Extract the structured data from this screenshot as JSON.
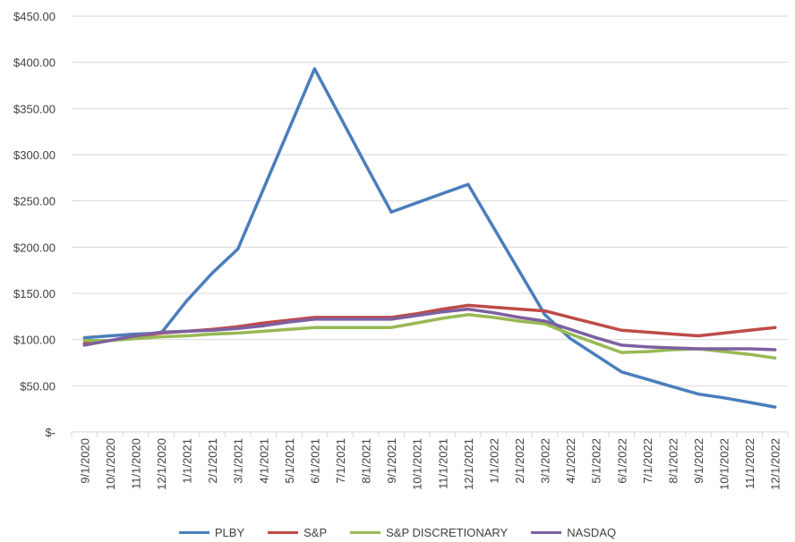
{
  "chart_data": {
    "type": "line",
    "categories": [
      "9/1/2020",
      "10/1/2020",
      "11/1/2020",
      "12/1/2020",
      "1/1/2021",
      "2/1/2021",
      "3/1/2021",
      "4/1/2021",
      "5/1/2021",
      "6/1/2021",
      "7/1/2021",
      "8/1/2021",
      "9/1/2021",
      "10/1/2021",
      "11/1/2021",
      "12/1/2021",
      "1/1/2022",
      "2/1/2022",
      "3/1/2022",
      "4/1/2022",
      "5/1/2022",
      "6/1/2022",
      "7/1/2022",
      "8/1/2022",
      "9/1/2022",
      "10/1/2022",
      "11/1/2022",
      "12/1/2022"
    ],
    "y_ticks": [
      0,
      50,
      100,
      150,
      200,
      250,
      300,
      350,
      400,
      450
    ],
    "y_tick_labels": [
      "$-",
      "$50.00",
      "$100.00",
      "$150.00",
      "$200.00",
      "$250.00",
      "$300.00",
      "$350.00",
      "$400.00",
      "$450.00"
    ],
    "ylim": [
      0,
      450
    ],
    "grid": true,
    "legend_position": "bottom",
    "title": "",
    "xlabel": "",
    "ylabel": "",
    "series": [
      {
        "name": "PLBY",
        "color": "#4a7ebb",
        "values": [
          102,
          104,
          106,
          107,
          142,
          172,
          198,
          263,
          328,
          393,
          341,
          289,
          238,
          248,
          258,
          268,
          221,
          174,
          127,
          101,
          83,
          65,
          57,
          49,
          41,
          37,
          32,
          27
        ]
      },
      {
        "name": "S&P",
        "color": "#be4b48",
        "values": [
          96,
          99,
          103,
          107,
          109,
          111,
          114,
          118,
          121,
          124,
          124,
          124,
          124,
          128,
          133,
          137,
          135,
          133,
          131,
          124,
          117,
          110,
          108,
          106,
          104,
          107,
          110,
          113
        ]
      },
      {
        "name": "S&P DISCRETIONARY",
        "color": "#98b954",
        "values": [
          99,
          99,
          101,
          103,
          104,
          106,
          107,
          109,
          111,
          113,
          113,
          113,
          113,
          118,
          123,
          127,
          124,
          120,
          117,
          106,
          96,
          86,
          87,
          89,
          90,
          87,
          84,
          80
        ]
      },
      {
        "name": "NASDAQ",
        "color": "#7d60a0",
        "values": [
          94,
          99,
          104,
          108,
          109,
          110,
          112,
          115,
          119,
          122,
          122,
          122,
          122,
          126,
          130,
          133,
          129,
          124,
          120,
          111,
          102,
          94,
          92,
          91,
          90,
          90,
          90,
          89
        ]
      }
    ]
  }
}
